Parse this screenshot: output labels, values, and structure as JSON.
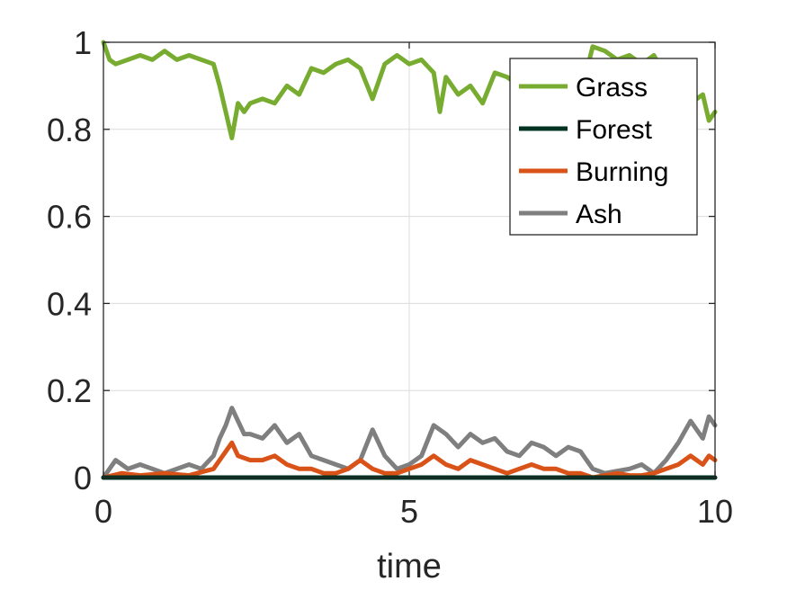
{
  "chart_data": {
    "type": "line",
    "title": "",
    "xlabel": "time",
    "ylabel": "",
    "xlim": [
      0,
      10
    ],
    "ylim": [
      0,
      1
    ],
    "x_ticks": [
      "0",
      "5",
      "10"
    ],
    "y_ticks": [
      "0",
      "0.2",
      "0.4",
      "0.6",
      "0.8",
      "1"
    ],
    "grid": true,
    "legend_position": "top-right",
    "series": [
      {
        "name": "Grass",
        "color": "#77ac30",
        "x": [
          0,
          0.1,
          0.2,
          0.4,
          0.6,
          0.8,
          1.0,
          1.2,
          1.4,
          1.6,
          1.8,
          1.9,
          2.0,
          2.1,
          2.2,
          2.3,
          2.4,
          2.6,
          2.8,
          3.0,
          3.2,
          3.4,
          3.6,
          3.8,
          4.0,
          4.2,
          4.4,
          4.6,
          4.8,
          5.0,
          5.2,
          5.4,
          5.5,
          5.6,
          5.8,
          6.0,
          6.2,
          6.4,
          6.6,
          6.8,
          7.0,
          7.2,
          7.4,
          7.6,
          7.8,
          8.0,
          8.2,
          8.4,
          8.6,
          8.8,
          9.0,
          9.2,
          9.4,
          9.6,
          9.8,
          9.9,
          10.0
        ],
        "values": [
          1.0,
          0.96,
          0.95,
          0.96,
          0.97,
          0.96,
          0.98,
          0.96,
          0.97,
          0.96,
          0.95,
          0.9,
          0.84,
          0.78,
          0.86,
          0.84,
          0.86,
          0.87,
          0.86,
          0.9,
          0.88,
          0.94,
          0.93,
          0.95,
          0.96,
          0.94,
          0.87,
          0.95,
          0.97,
          0.95,
          0.96,
          0.93,
          0.84,
          0.92,
          0.88,
          0.9,
          0.86,
          0.93,
          0.92,
          0.9,
          0.88,
          0.89,
          0.91,
          0.9,
          0.88,
          0.99,
          0.98,
          0.96,
          0.97,
          0.95,
          0.97,
          0.92,
          0.9,
          0.86,
          0.88,
          0.82,
          0.84
        ]
      },
      {
        "name": "Forest",
        "color": "#003321",
        "x": [
          0,
          10
        ],
        "values": [
          0,
          0
        ]
      },
      {
        "name": "Burning",
        "color": "#d95319",
        "x": [
          0,
          0.3,
          0.6,
          1.0,
          1.4,
          1.8,
          2.0,
          2.1,
          2.2,
          2.4,
          2.6,
          2.8,
          3.0,
          3.2,
          3.4,
          3.6,
          3.8,
          4.0,
          4.2,
          4.4,
          4.6,
          4.8,
          5.0,
          5.2,
          5.4,
          5.6,
          5.8,
          6.0,
          6.2,
          6.4,
          6.6,
          6.8,
          7.0,
          7.2,
          7.4,
          7.6,
          7.8,
          8.0,
          8.2,
          8.4,
          8.6,
          8.8,
          9.0,
          9.2,
          9.4,
          9.6,
          9.8,
          9.9,
          10.0
        ],
        "values": [
          0,
          0.01,
          0.005,
          0.01,
          0.005,
          0.02,
          0.06,
          0.08,
          0.05,
          0.04,
          0.04,
          0.05,
          0.03,
          0.02,
          0.02,
          0.01,
          0.01,
          0.02,
          0.04,
          0.02,
          0.01,
          0.01,
          0.02,
          0.03,
          0.05,
          0.03,
          0.02,
          0.04,
          0.03,
          0.02,
          0.01,
          0.02,
          0.03,
          0.02,
          0.02,
          0.01,
          0.01,
          0.0,
          0.005,
          0.01,
          0.005,
          0.005,
          0.01,
          0.02,
          0.03,
          0.05,
          0.03,
          0.05,
          0.04
        ]
      },
      {
        "name": "Ash",
        "color": "#7f7f7f",
        "x": [
          0,
          0.2,
          0.4,
          0.6,
          0.8,
          1.0,
          1.2,
          1.4,
          1.6,
          1.8,
          1.9,
          2.0,
          2.1,
          2.2,
          2.3,
          2.4,
          2.6,
          2.8,
          3.0,
          3.2,
          3.4,
          3.6,
          3.8,
          4.0,
          4.2,
          4.4,
          4.6,
          4.8,
          5.0,
          5.2,
          5.4,
          5.6,
          5.8,
          6.0,
          6.2,
          6.4,
          6.6,
          6.8,
          7.0,
          7.2,
          7.4,
          7.6,
          7.8,
          8.0,
          8.2,
          8.4,
          8.6,
          8.8,
          9.0,
          9.2,
          9.4,
          9.6,
          9.8,
          9.9,
          10.0
        ],
        "values": [
          0,
          0.04,
          0.02,
          0.03,
          0.02,
          0.01,
          0.02,
          0.03,
          0.02,
          0.05,
          0.09,
          0.12,
          0.16,
          0.13,
          0.1,
          0.1,
          0.09,
          0.12,
          0.08,
          0.1,
          0.05,
          0.04,
          0.03,
          0.02,
          0.04,
          0.11,
          0.05,
          0.02,
          0.03,
          0.05,
          0.12,
          0.1,
          0.07,
          0.1,
          0.08,
          0.09,
          0.06,
          0.05,
          0.08,
          0.07,
          0.05,
          0.07,
          0.06,
          0.02,
          0.01,
          0.015,
          0.02,
          0.03,
          0.01,
          0.04,
          0.08,
          0.13,
          0.09,
          0.14,
          0.12
        ]
      }
    ]
  }
}
